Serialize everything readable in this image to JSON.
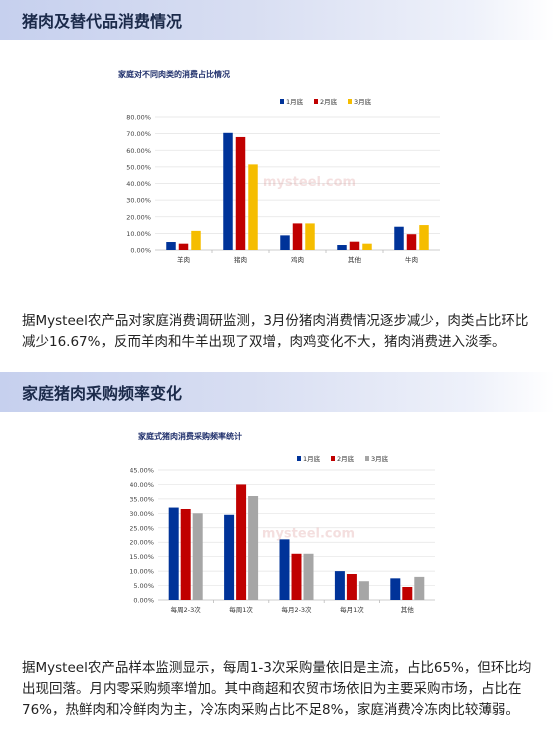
{
  "section1": {
    "heading": "猪肉及替代品消费情况",
    "paragraph": "据Mysteel农产品对家庭消费调研监测，3月份猪肉消费情况逐步减少，肉类占比环比减少16.67%，反而羊肉和牛羊出现了双增，肉鸡变化不大，猪肉消费进入淡季。"
  },
  "section2": {
    "heading": "家庭猪肉采购频率变化",
    "paragraph": "据Mysteel农产品样本监测显示，每周1-3次采购量依旧是主流，占比65%，但环比均出现回落。月内零采购频率增加。其中商超和农贸市场依旧为主要采购市场，占比在76%，热鲜肉和冷鲜肉为主，冷冻肉采购占比不足8%，家庭消费冷冻肉比较薄弱。"
  },
  "watermark": {
    "text": "mysteel.com"
  },
  "chart_data": [
    {
      "type": "bar",
      "title": "家庭对不同肉类的消费占比情况",
      "categories": [
        "羊肉",
        "猪肉",
        "鸡肉",
        "其他",
        "牛肉"
      ],
      "series": [
        {
          "name": "1月底",
          "color": "#003399",
          "values": [
            4.8,
            70.5,
            8.8,
            3.0,
            14.0
          ]
        },
        {
          "name": "2月底",
          "color": "#c00000",
          "values": [
            3.8,
            68.0,
            16.0,
            5.0,
            9.5
          ]
        },
        {
          "name": "3月底",
          "color": "#f5bd00",
          "values": [
            11.5,
            51.5,
            16.0,
            3.8,
            15.0
          ]
        }
      ],
      "yticks": [
        "0.00%",
        "10.00%",
        "20.00%",
        "30.00%",
        "40.00%",
        "50.00%",
        "60.00%",
        "70.00%",
        "80.00%"
      ],
      "ylim": [
        0,
        80
      ],
      "legend": "top"
    },
    {
      "type": "bar",
      "title": "家庭式猪肉消费采购频率统计",
      "categories": [
        "每周2-3次",
        "每周1次",
        "每月2-3次",
        "每月1次",
        "其他"
      ],
      "series": [
        {
          "name": "1月底",
          "color": "#003399",
          "values": [
            32.0,
            29.5,
            21.0,
            10.0,
            7.5
          ]
        },
        {
          "name": "2月底",
          "color": "#c00000",
          "values": [
            31.5,
            40.0,
            16.0,
            9.0,
            4.5
          ]
        },
        {
          "name": "3月底",
          "color": "#a6a6a6",
          "values": [
            30.0,
            36.0,
            16.0,
            6.5,
            8.0
          ]
        }
      ],
      "yticks": [
        "0.00%",
        "5.00%",
        "10.00%",
        "15.00%",
        "20.00%",
        "25.00%",
        "30.00%",
        "35.00%",
        "40.00%",
        "45.00%"
      ],
      "ylim": [
        0,
        45
      ],
      "legend": "top"
    }
  ]
}
